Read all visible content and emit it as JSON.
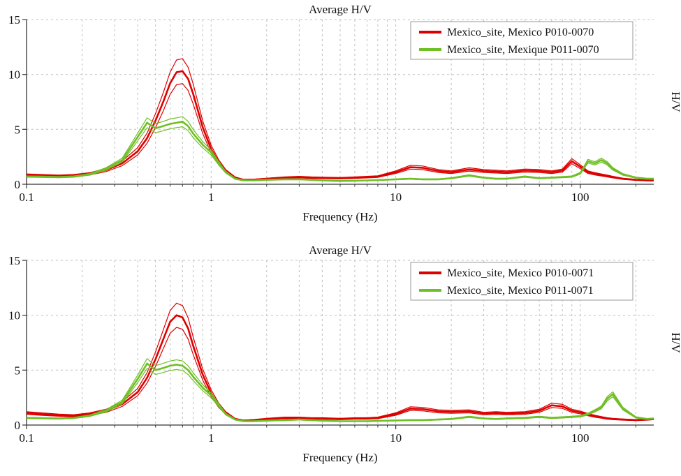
{
  "chart_data": [
    {
      "type": "line",
      "title": "Average H/V",
      "xlabel": "Frequency (Hz)",
      "ylabel": "H/V",
      "x_scale": "log",
      "xlim": [
        0.1,
        250
      ],
      "ylim": [
        0,
        15
      ],
      "y_ticks": [
        0,
        5,
        10,
        15
      ],
      "x_major_ticks": [
        0.1,
        1,
        10,
        100
      ],
      "x_tick_labels": [
        "0.1",
        "1",
        "10",
        "100"
      ],
      "grid": true,
      "legend_position": "top-right",
      "x": [
        0.1,
        0.12,
        0.15,
        0.18,
        0.22,
        0.27,
        0.33,
        0.4,
        0.45,
        0.5,
        0.55,
        0.6,
        0.65,
        0.7,
        0.75,
        0.8,
        0.9,
        1.0,
        1.1,
        1.2,
        1.35,
        1.5,
        1.7,
        2,
        2.5,
        3,
        3.5,
        4,
        5,
        6,
        7,
        8,
        10,
        12,
        14,
        17,
        20,
        25,
        30,
        35,
        40,
        50,
        60,
        70,
        80,
        90,
        100,
        110,
        120,
        130,
        140,
        150,
        170,
        200,
        230,
        250
      ],
      "series": [
        {
          "name": "Mexico_site, Mexico P010-0070",
          "color": "#dd0000",
          "band": 0.11,
          "values": [
            0.85,
            0.8,
            0.75,
            0.8,
            0.95,
            1.3,
            1.9,
            3.0,
            4.2,
            5.8,
            7.5,
            9.2,
            10.2,
            10.3,
            9.6,
            8.2,
            5.2,
            3.2,
            2.0,
            1.2,
            0.6,
            0.4,
            0.42,
            0.5,
            0.6,
            0.65,
            0.6,
            0.58,
            0.55,
            0.6,
            0.65,
            0.7,
            1.1,
            1.55,
            1.5,
            1.2,
            1.1,
            1.35,
            1.2,
            1.15,
            1.1,
            1.25,
            1.2,
            1.1,
            1.25,
            2.1,
            1.6,
            1.1,
            0.95,
            0.85,
            0.75,
            0.65,
            0.5,
            0.4,
            0.35,
            0.35
          ]
        },
        {
          "name": "Mexico_site, Mexique P011-0070",
          "color": "#6fbf26",
          "band": 0.08,
          "values": [
            0.7,
            0.68,
            0.65,
            0.7,
            0.9,
            1.4,
            2.2,
            4.3,
            5.6,
            5.1,
            5.3,
            5.5,
            5.6,
            5.7,
            5.3,
            4.6,
            3.6,
            2.9,
            1.9,
            1.1,
            0.5,
            0.35,
            0.35,
            0.4,
            0.45,
            0.45,
            0.4,
            0.35,
            0.3,
            0.32,
            0.35,
            0.38,
            0.45,
            0.5,
            0.45,
            0.45,
            0.55,
            0.8,
            0.6,
            0.5,
            0.5,
            0.7,
            0.55,
            0.6,
            0.65,
            0.7,
            1.0,
            2.1,
            1.9,
            2.2,
            1.9,
            1.4,
            0.9,
            0.6,
            0.5,
            0.5
          ]
        }
      ]
    },
    {
      "type": "line",
      "title": "Average H/V",
      "xlabel": "Frequency (Hz)",
      "ylabel": "H/V",
      "x_scale": "log",
      "xlim": [
        0.1,
        250
      ],
      "ylim": [
        0,
        15
      ],
      "y_ticks": [
        0,
        5,
        10,
        15
      ],
      "x_major_ticks": [
        0.1,
        1,
        10,
        100
      ],
      "x_tick_labels": [
        "0.1",
        "1",
        "10",
        "100"
      ],
      "grid": true,
      "legend_position": "top-right",
      "x": [
        0.1,
        0.12,
        0.15,
        0.18,
        0.22,
        0.27,
        0.33,
        0.4,
        0.45,
        0.5,
        0.55,
        0.6,
        0.65,
        0.7,
        0.75,
        0.8,
        0.9,
        1.0,
        1.1,
        1.2,
        1.35,
        1.5,
        1.7,
        2,
        2.5,
        3,
        3.5,
        4,
        5,
        6,
        7,
        8,
        10,
        12,
        14,
        17,
        20,
        25,
        30,
        35,
        40,
        50,
        60,
        70,
        80,
        90,
        100,
        110,
        120,
        130,
        140,
        150,
        170,
        200,
        230,
        250
      ],
      "series": [
        {
          "name": "Mexico_site, Mexico P010-0071",
          "color": "#dd0000",
          "band": 0.11,
          "values": [
            1.1,
            1.0,
            0.9,
            0.85,
            1.0,
            1.3,
            1.9,
            3.0,
            4.3,
            6.0,
            7.8,
            9.4,
            10.0,
            9.8,
            8.8,
            7.2,
            4.6,
            2.9,
            1.8,
            1.1,
            0.55,
            0.4,
            0.45,
            0.55,
            0.65,
            0.65,
            0.6,
            0.6,
            0.55,
            0.6,
            0.6,
            0.65,
            1.0,
            1.5,
            1.45,
            1.25,
            1.2,
            1.25,
            1.05,
            1.1,
            1.05,
            1.1,
            1.3,
            1.8,
            1.7,
            1.3,
            1.15,
            0.95,
            0.8,
            0.7,
            0.6,
            0.55,
            0.5,
            0.45,
            0.5,
            0.55
          ]
        },
        {
          "name": "Mexico_site, Mexico P011-0071",
          "color": "#6fbf26",
          "band": 0.08,
          "values": [
            0.65,
            0.62,
            0.6,
            0.65,
            0.85,
            1.3,
            2.1,
            4.2,
            5.6,
            5.0,
            5.2,
            5.4,
            5.5,
            5.4,
            5.0,
            4.4,
            3.4,
            2.7,
            1.8,
            1.0,
            0.5,
            0.35,
            0.35,
            0.4,
            0.45,
            0.5,
            0.45,
            0.4,
            0.35,
            0.35,
            0.35,
            0.38,
            0.42,
            0.45,
            0.45,
            0.5,
            0.55,
            0.75,
            0.6,
            0.55,
            0.6,
            0.65,
            0.75,
            0.65,
            0.7,
            0.75,
            0.8,
            1.0,
            1.3,
            1.6,
            2.4,
            2.8,
            1.5,
            0.7,
            0.55,
            0.6
          ]
        }
      ]
    }
  ],
  "style": {
    "grid_color": "#bfbfbf",
    "axis_color": "#333333",
    "legend_border": "#9a9a9a",
    "legend_bg": "#ffffff"
  }
}
